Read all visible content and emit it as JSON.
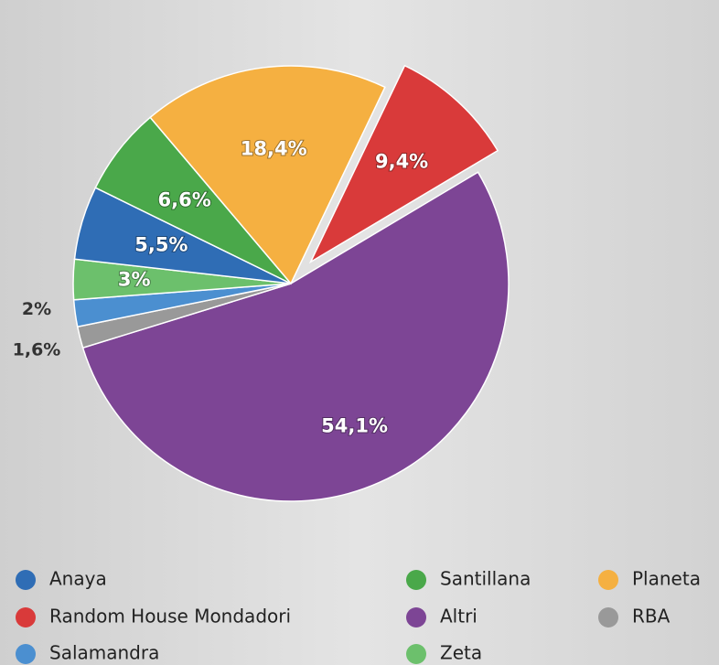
{
  "chart_data": {
    "type": "pie",
    "series": [
      {
        "name": "Anaya",
        "color": "#2f6db5",
        "values": [
          5.5
        ],
        "value_labels": [
          "5,5%"
        ]
      },
      {
        "name": "Random House Mondadori",
        "color": "#d93a3a",
        "values": [
          9.4
        ],
        "value_labels": [
          "9,4%"
        ]
      },
      {
        "name": "Salamandra",
        "color": "#4b8fd0",
        "values": [
          2
        ],
        "value_labels": [
          "2%"
        ]
      },
      {
        "name": "Santillana",
        "color": "#4aa84a",
        "values": [
          6.6
        ],
        "value_labels": [
          "6,6%"
        ]
      },
      {
        "name": "Altri",
        "color": "#7d4595",
        "values": [
          54.1
        ],
        "value_labels": [
          "54,1%"
        ]
      },
      {
        "name": "Zeta",
        "color": "#6cc06c",
        "values": [
          3
        ],
        "value_labels": [
          "3%"
        ]
      },
      {
        "name": "Planeta",
        "color": "#f5b041",
        "values": [
          18.4
        ],
        "value_labels": [
          "18,4%"
        ]
      },
      {
        "name": "RBA",
        "color": "#999999",
        "values": [
          1.6
        ],
        "value_labels": [
          "1,6%"
        ]
      }
    ]
  }
}
